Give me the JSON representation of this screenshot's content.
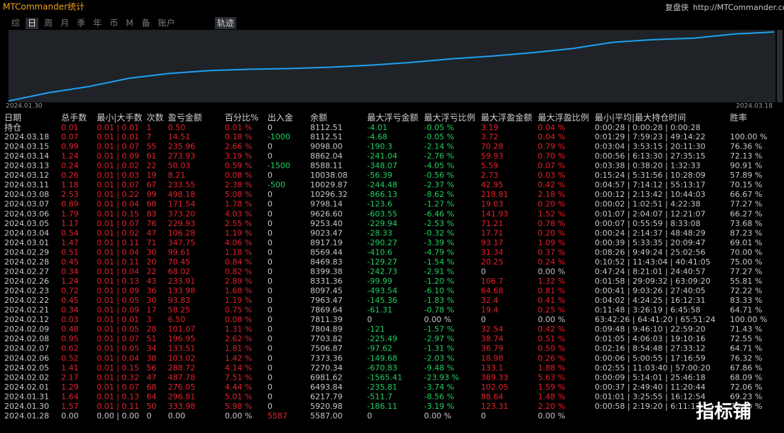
{
  "header": {
    "title": "MTCommander统计",
    "brand": "复盘侠",
    "url": "http://MTCommander.com"
  },
  "tabs": [
    "综",
    "日",
    "周",
    "月",
    "季",
    "年",
    "币",
    "M",
    "备",
    "账户"
  ],
  "view_tab": "轨迹",
  "chart_data": {
    "type": "line",
    "color": "#1ea0f0",
    "xlabels": [
      "2024.01.30",
      "2024.03.18"
    ],
    "values": [
      0,
      12,
      21,
      33,
      40,
      44,
      46,
      47,
      49,
      52,
      56,
      61,
      65,
      70,
      76,
      85,
      89,
      91,
      97,
      100
    ],
    "ylim": [
      0,
      100
    ]
  },
  "table": {
    "columns": [
      "日期",
      "总手数",
      "最小|大手数",
      "次数",
      "盈亏金额",
      "百分比%",
      "出入金",
      "余额",
      "最大浮亏金额",
      "最大浮亏比例",
      "最大浮盈金额",
      "最大浮盈比例",
      "最小|平均|最大持仓时间",
      "胜率"
    ],
    "rows": [
      [
        "持仓",
        "0.01",
        "0.01 | 0.01",
        "1",
        "0.50",
        "0.01 %",
        "0",
        "8112.51",
        "-4.01",
        "-0.05 %",
        "3.19",
        "0.04 %",
        "0:00:28 | 0:00:28 | 0:00:28"
      ],
      [
        "2024.03.18",
        "0.07",
        "0.01 | 0.01",
        "7",
        "14.51",
        "0.18 %",
        "-1000",
        "8112.51",
        "-4.68",
        "-0.05 %",
        "3.72",
        "0.04 %",
        "0:01:29 | 7:59:23 | 49:14:22",
        "100.00 %"
      ],
      [
        "2024.03.15",
        "0.99",
        "0.01 | 0.07",
        "55",
        "235.96",
        "2.66 %",
        "0",
        "9098.00",
        "-190.3",
        "-2.14 %",
        "70.28",
        "0.79 %",
        "0:03:04 | 3:53:15 | 20:11:30",
        "76.36 %"
      ],
      [
        "2024.03.14",
        "1.24",
        "0.01 | 0.09",
        "61",
        "273.93",
        "3.19 %",
        "0",
        "8862.04",
        "-241.04",
        "-2.76 %",
        "59.93",
        "0.70 %",
        "0:00:56 | 6:13:30 | 27:35:15",
        "72.13 %"
      ],
      [
        "2024.03.13",
        "0.24",
        "0.01 | 0.02",
        "22",
        "50.03",
        "0.59 %",
        "-1500",
        "8588.11",
        "-348.07",
        "-4.05 %",
        "5.59",
        "0.07 %",
        "0:03:38 | 0:38:20 | 1:32:33",
        "90.91 %"
      ],
      [
        "2024.03.12",
        "0.26",
        "0.01 | 0.03",
        "19",
        "8.21",
        "0.08 %",
        "0",
        "10038.08",
        "-56.39",
        "-0.56 %",
        "2.73",
        "0.03 %",
        "0:15:24 | 5:31:56 | 10:28:09",
        "57.89 %"
      ],
      [
        "2024.03.11",
        "1.18",
        "0.01 | 0.07",
        "67",
        "233.55",
        "2.38 %",
        "-500",
        "10029.87",
        "-244.48",
        "-2.37 %",
        "42.95",
        "0.42 %",
        "0:04:57 | 7:14:12 | 55:13:17",
        "70.15 %"
      ],
      [
        "2024.03.08",
        "2.53",
        "0.01 | 0.22",
        "99",
        "498.18",
        "5.08 %",
        "0",
        "10296.32",
        "-866.13",
        "-8.62 %",
        "218.81",
        "2.18 %",
        "0:00:12 | 2:13:42 | 10:44:03",
        "66.67 %"
      ],
      [
        "2024.03.07",
        "0.89",
        "0.01 | 0.04",
        "68",
        "171.54",
        "1.78 %",
        "0",
        "9798.14",
        "-123.6",
        "-1.27 %",
        "19.03",
        "0.20 %",
        "0:00:02 | 1:02:51 | 4:22:38",
        "77.27 %"
      ],
      [
        "2024.03.06",
        "1.79",
        "0.01 | 0.15",
        "83",
        "373.20",
        "4.03 %",
        "0",
        "9626.60",
        "-603.55",
        "-6.46 %",
        "141.93",
        "1.52 %",
        "0:01:07 | 2:04:07 | 12:21:07",
        "66.27 %"
      ],
      [
        "2024.03.05",
        "1.17",
        "0.01 | 0.07",
        "76",
        "229.93",
        "2.55 %",
        "0",
        "9253.40",
        "-229.94",
        "-2.53 %",
        "71.21",
        "0.78 %",
        "0:00:07 | 0:55:59 | 8:33:08",
        "73.68 %"
      ],
      [
        "2024.03.04",
        "0.54",
        "0.01 | 0.02",
        "47",
        "106.28",
        "1.19 %",
        "0",
        "9023.47",
        "-28.33",
        "-0.32 %",
        "17.71",
        "0.20 %",
        "0:00:24 | 2:14:37 | 48:48:29",
        "87.23 %"
      ],
      [
        "2024.03.01",
        "1.47",
        "0.01 | 0.11",
        "71",
        "347.75",
        "4.06 %",
        "0",
        "8917.19",
        "-290.27",
        "-3.39 %",
        "93.17",
        "1.09 %",
        "0:00:39 | 5:33:35 | 20:09:47",
        "69.01 %"
      ],
      [
        "2024.02.29",
        "0.51",
        "0.01 | 0.04",
        "30",
        "99.61",
        "1.18 %",
        "0",
        "8569.44",
        "-410.6",
        "-4.79 %",
        "31.34",
        "0.37 %",
        "0:08:26 | 9:49:24 | 25:02:56",
        "70.00 %"
      ],
      [
        "2024.02.28",
        "0.45",
        "0.01 | 0.11",
        "20",
        "70.45",
        "0.84 %",
        "0",
        "8469.83",
        "-129.27",
        "-1.54 %",
        "20.25",
        "0.24 %",
        "0:10:52 | 11:43:04 | 40:41:05",
        "75.00 %"
      ],
      [
        "2024.02.27",
        "0.34",
        "0.01 | 0.04",
        "22",
        "68.02",
        "0.82 %",
        "0",
        "8399.38",
        "-242.73",
        "-2.91 %",
        "0",
        "0.00 %",
        "0:47:24 | 8:21:01 | 24:40:57",
        "77.27 %"
      ],
      [
        "2024.02.26",
        "1.24",
        "0.01 | 0.13",
        "43",
        "233.91",
        "2.89 %",
        "0",
        "8331.36",
        "-99.99",
        "-1.20 %",
        "106.7",
        "1.32 %",
        "0:01:58 | 29:09:32 | 63:09:20",
        "55.81 %"
      ],
      [
        "2024.02.23",
        "0.72",
        "0.01 | 0.09",
        "36",
        "133.98",
        "1.68 %",
        "0",
        "8097.45",
        "-493.54",
        "-6.10 %",
        "64.68",
        "0.81 %",
        "0:00:41 | 9:03:26 | 27:40:05",
        "72.22 %"
      ],
      [
        "2024.02.22",
        "0.45",
        "0.01 | 0.05",
        "30",
        "93.83",
        "1.19 %",
        "0",
        "7963.47",
        "-145.36",
        "-1.83 %",
        "32.4",
        "0.41 %",
        "0:04:02 | 4:24:25 | 16:12:31",
        "83.33 %"
      ],
      [
        "2024.02.21",
        "0.34",
        "0.01 | 0.09",
        "17",
        "58.25",
        "0.75 %",
        "0",
        "7869.64",
        "-61.31",
        "-0.78 %",
        "19.4",
        "0.25 %",
        "0:11:48 | 3:26:19 | 6:45:58",
        "64.71 %"
      ],
      [
        "2024.02.12",
        "0.03",
        "0.01 | 0.01",
        "3",
        "6.50",
        "0.08 %",
        "0",
        "7811.39",
        "0",
        "0.00 %",
        "0",
        "0.00 %",
        "63:42:26 | 64:41:20 | 65:51:24",
        "100.00 %"
      ],
      [
        "2024.02.09",
        "0.48",
        "0.01 | 0.05",
        "28",
        "101.07",
        "1.31 %",
        "0",
        "7804.89",
        "-121",
        "-1.57 %",
        "32.54",
        "0.42 %",
        "0:09:48 | 9:46:10 | 22:59:20",
        "71.43 %"
      ],
      [
        "2024.02.08",
        "0.95",
        "0.01 | 0.07",
        "51",
        "196.95",
        "2.62 %",
        "0",
        "7703.82",
        "-225.49",
        "-2.97 %",
        "38.74",
        "0.51 %",
        "0:01:05 | 4:06:03 | 19:10:16",
        "72.55 %"
      ],
      [
        "2024.02.07",
        "0.62",
        "0.01 | 0.05",
        "34",
        "133.51",
        "1.81 %",
        "0",
        "7506.87",
        "-97.62",
        "-1.31 %",
        "36.79",
        "0.50 %",
        "0:02:16 | 8:54:48 | 27:33:12",
        "64.71 %"
      ],
      [
        "2024.02.06",
        "0.52",
        "0.01 | 0.04",
        "38",
        "103.02",
        "1.42 %",
        "0",
        "7373.36",
        "-149.68",
        "-2.03 %",
        "18.98",
        "0.26 %",
        "0:00:06 | 5:00:55 | 17:16:59",
        "76.32 %"
      ],
      [
        "2024.02.05",
        "1.41",
        "0.01 | 0.15",
        "56",
        "288.72",
        "4.14 %",
        "0",
        "7270.34",
        "-670.83",
        "-9.48 %",
        "133.1",
        "1.88 %",
        "0:02:55 | 11:03:40 | 57:00:20",
        "67.86 %"
      ],
      [
        "2024.02.02",
        "2.17",
        "0.01 | 0.32",
        "47",
        "487.78",
        "7.51 %",
        "0",
        "6981.62",
        "-1565.41",
        "-23.93 %",
        "369.33",
        "5.63 %",
        "0:00:09 | 5:14:01 | 25:46:18",
        "68.09 %"
      ],
      [
        "2024.02.01",
        "1.29",
        "0.01 | 0.07",
        "68",
        "276.05",
        "4.44 %",
        "0",
        "6493.84",
        "-235.81",
        "-3.74 %",
        "102.05",
        "1.59 %",
        "0:00:37 | 2:49:40 | 11:20:44",
        "72.06 %"
      ],
      [
        "2024.01.31",
        "1.64",
        "0.01 | 0.13",
        "64",
        "296.81",
        "5.01 %",
        "0",
        "6217.79",
        "-511.7",
        "-8.56 %",
        "88.64",
        "1.48 %",
        "0:01:01 | 3:25:55 | 16:12:54",
        "69.23 %"
      ],
      [
        "2024.01.30",
        "1.57",
        "0.01 | 0.11",
        "50",
        "333.98",
        "5.98 %",
        "0",
        "5920.98",
        "-186.11",
        "-3.19 %",
        "123.31",
        "2.20 %",
        "0:00:58 | 2:19:20 | 6:11:13",
        "70.00 %"
      ],
      [
        "2024.01.28",
        "0.00",
        "0.00 | 0.00",
        "0",
        "0.00",
        "0.00 %",
        "5587",
        "5587.00",
        "0",
        "0.00 %",
        "0",
        "0.00 %"
      ]
    ]
  },
  "watermark": "指标铺"
}
